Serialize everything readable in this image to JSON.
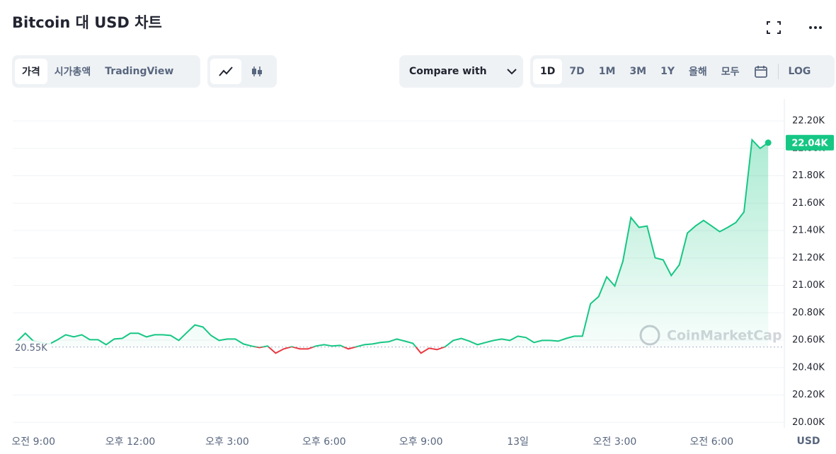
{
  "header": {
    "title": "Bitcoin 대 USD 차트"
  },
  "controls": {
    "tabs": [
      "가격",
      "시가총액",
      "TradingView"
    ],
    "compare": "Compare with",
    "ranges": [
      "1D",
      "7D",
      "1M",
      "3M",
      "1Y",
      "올해",
      "모두"
    ],
    "log": "LOG"
  },
  "chart_data": {
    "type": "line",
    "watermark": "CoinMarketCap",
    "y_unit": "USD",
    "x": [
      8.5,
      8.75,
      9,
      9.25,
      9.5,
      9.75,
      10,
      10.25,
      10.5,
      10.75,
      11,
      11.25,
      11.5,
      11.75,
      12,
      12.25,
      12.5,
      12.75,
      13,
      13.25,
      13.5,
      13.75,
      14,
      14.25,
      14.5,
      14.75,
      15,
      15.25,
      15.5,
      15.75,
      16,
      16.25,
      16.5,
      16.75,
      17,
      17.25,
      17.5,
      17.75,
      18,
      18.25,
      18.5,
      18.75,
      19,
      19.25,
      19.5,
      19.75,
      20,
      20.25,
      20.5,
      20.75,
      21,
      21.25,
      21.5,
      21.75,
      22,
      22.25,
      22.5,
      22.75,
      23,
      23.25,
      23.5,
      23.75,
      24,
      24.25,
      24.5,
      24.75,
      25,
      25.25,
      25.5,
      25.75,
      26,
      26.25,
      26.5,
      26.75,
      27,
      27.25,
      27.5,
      27.75,
      28,
      28.25,
      28.5,
      28.75,
      29,
      29.25,
      29.5,
      29.75,
      30,
      30.25,
      30.5,
      30.75,
      31,
      31.25,
      31.5,
      31.75
    ],
    "series": [
      {
        "name": "BTC",
        "color": "#16c784",
        "below_color": "#ea3943",
        "last_label": "22.04K",
        "values": [
          20593,
          20650,
          20593,
          20583,
          20572,
          20603,
          20639,
          20624,
          20639,
          20603,
          20603,
          20567,
          20608,
          20613,
          20650,
          20650,
          20624,
          20639,
          20639,
          20634,
          20598,
          20655,
          20711,
          20696,
          20634,
          20598,
          20608,
          20608,
          20572,
          20557,
          20546,
          20557,
          20505,
          20536,
          20552,
          20536,
          20536,
          20557,
          20567,
          20557,
          20562,
          20536,
          20552,
          20567,
          20572,
          20583,
          20588,
          20608,
          20593,
          20577,
          20505,
          20541,
          20531,
          20552,
          20598,
          20613,
          20593,
          20567,
          20583,
          20598,
          20608,
          20598,
          20629,
          20619,
          20583,
          20598,
          20598,
          20593,
          20613,
          20629,
          20629,
          20866,
          20918,
          21062,
          20995,
          21175,
          21495,
          21423,
          21433,
          21201,
          21186,
          21072,
          21150,
          21382,
          21433,
          21474,
          21433,
          21392,
          21423,
          21459,
          21536,
          22062,
          22000,
          22041
        ]
      }
    ],
    "reference": {
      "value": 20550,
      "label": "20.55K"
    },
    "xlim": [
      8.36,
      32.25
    ],
    "ylim": [
      19960,
      22360
    ],
    "xticks": [
      {
        "value": 9,
        "label": "오전 9:00"
      },
      {
        "value": 12,
        "label": "오후 12:00"
      },
      {
        "value": 15,
        "label": "오후 3:00"
      },
      {
        "value": 18,
        "label": "오후 6:00"
      },
      {
        "value": 21,
        "label": "오후 9:00"
      },
      {
        "value": 24,
        "label": "13일"
      },
      {
        "value": 27,
        "label": "오전 3:00"
      },
      {
        "value": 30,
        "label": "오전 6:00"
      }
    ],
    "yticks": [
      {
        "value": 20000,
        "label": "20.00K"
      },
      {
        "value": 20200,
        "label": "20.20K"
      },
      {
        "value": 20400,
        "label": "20.40K"
      },
      {
        "value": 20600,
        "label": "20.60K"
      },
      {
        "value": 20800,
        "label": "20.80K"
      },
      {
        "value": 21000,
        "label": "21.00K"
      },
      {
        "value": 21200,
        "label": "21.20K"
      },
      {
        "value": 21400,
        "label": "21.40K"
      },
      {
        "value": 21600,
        "label": "21.60K"
      },
      {
        "value": 21800,
        "label": "21.80K"
      },
      {
        "value": 22000,
        "label": "22.00K"
      },
      {
        "value": 22200,
        "label": "22.20K"
      }
    ],
    "grid": true
  }
}
